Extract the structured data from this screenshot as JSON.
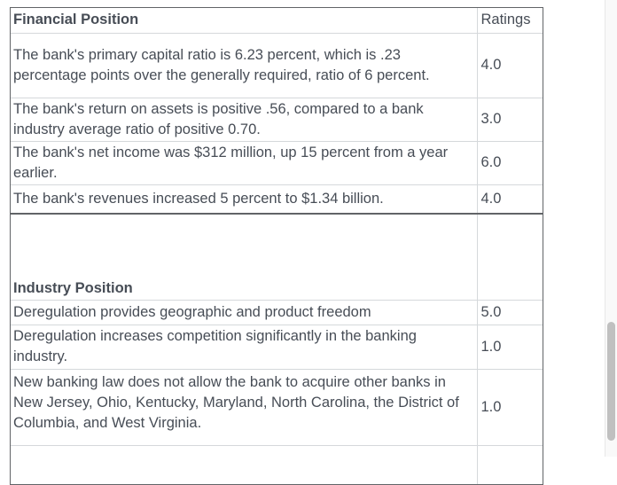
{
  "colors": {
    "text": "#474d56",
    "outer_border": "#616467",
    "inner_border": "#d5d8db",
    "scrollbar_thumb": "#c0c0c0"
  },
  "financial_table": {
    "header": {
      "title": "Financial Position",
      "ratings_label": "Ratings"
    },
    "rows": [
      {
        "description": "The bank's primary capital ratio is 6.23 percent, which is .23 percentage points over the generally required, ratio of 6 percent.",
        "rating": "4.0"
      },
      {
        "description": "The bank's return on assets is positive .56, compared to a bank industry average ratio of positive 0.70.",
        "rating": "3.0"
      },
      {
        "description": "The bank's net income was $312 million, up 15 percent from a year earlier.",
        "rating": "6.0"
      },
      {
        "description": "The bank's revenues increased 5 percent to $1.34 billion.",
        "rating": "4.0"
      }
    ]
  },
  "industry_table": {
    "section_title": "Industry Position",
    "rows": [
      {
        "description": "Deregulation provides geographic and product freedom",
        "rating": "5.0"
      },
      {
        "description": "Deregulation increases competition significantly in the banking industry.",
        "rating": "1.0"
      },
      {
        "description": "New banking law does not allow the bank to acquire other banks in New Jersey, Ohio, Kentucky, Maryland, North Carolina, the District of Columbia, and West Virginia.",
        "rating": "1.0"
      }
    ]
  }
}
